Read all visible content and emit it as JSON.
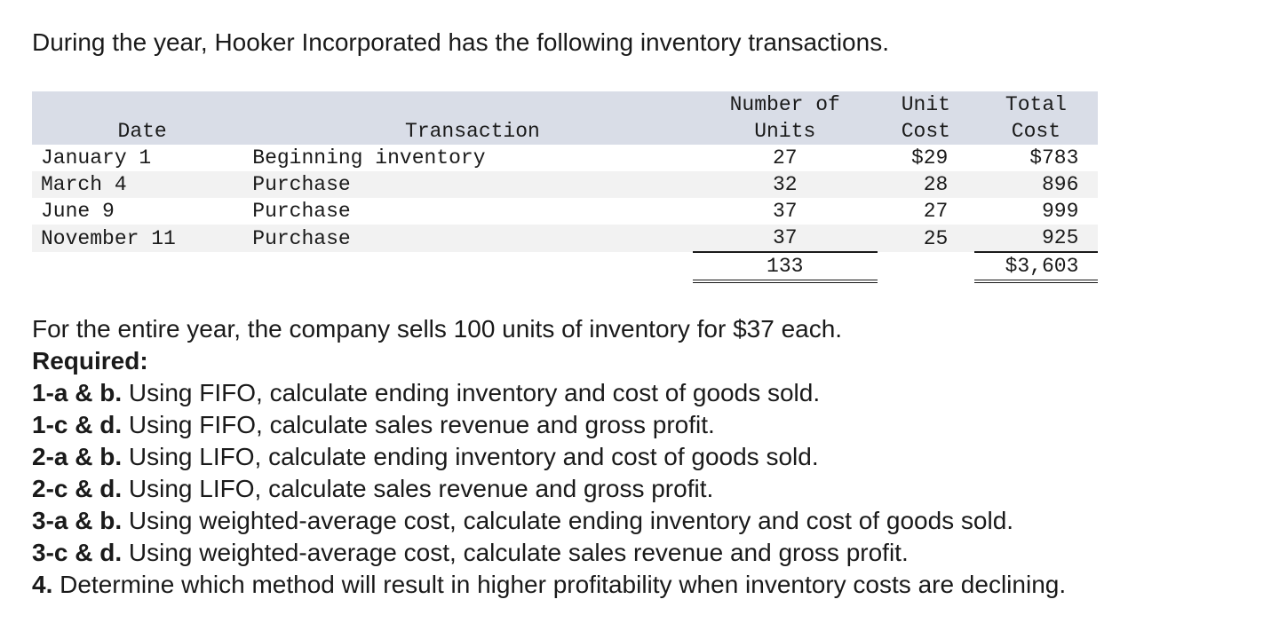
{
  "intro": "During the year, Hooker Incorporated has the following inventory transactions.",
  "table": {
    "headers": {
      "date": "Date",
      "transaction": "Transaction",
      "units_line1": "Number of",
      "units_line2": "Units",
      "unit_cost_line1": "Unit",
      "unit_cost_line2": "Cost",
      "total_cost_line1": "Total",
      "total_cost_line2": "Cost"
    },
    "rows": [
      {
        "date": "January 1",
        "transaction": "Beginning inventory",
        "units": "27",
        "unit_cost": "$29",
        "total_cost": "$783"
      },
      {
        "date": "March 4",
        "transaction": "Purchase",
        "units": "32",
        "unit_cost": "28",
        "total_cost": "896"
      },
      {
        "date": "June 9",
        "transaction": "Purchase",
        "units": "37",
        "unit_cost": "27",
        "total_cost": "999"
      },
      {
        "date": "November 11",
        "transaction": "Purchase",
        "units": "37",
        "unit_cost": "25",
        "total_cost": "925"
      }
    ],
    "totals": {
      "units": "133",
      "total_cost": "$3,603"
    }
  },
  "sales_line": "For the entire year, the company sells 100 units of inventory for $37 each.",
  "required_label": "Required:",
  "requirements": [
    {
      "label": "1-a & b.",
      "text": " Using FIFO, calculate ending inventory and cost of goods sold."
    },
    {
      "label": "1-c & d.",
      "text": " Using FIFO, calculate sales revenue and gross profit."
    },
    {
      "label": "2-a & b.",
      "text": " Using LIFO, calculate ending inventory and cost of goods sold."
    },
    {
      "label": "2-c & d.",
      "text": " Using LIFO, calculate sales revenue and gross profit."
    },
    {
      "label": "3-a & b.",
      "text": " Using weighted-average cost, calculate ending inventory and cost of goods sold."
    },
    {
      "label": "3-c & d.",
      "text": " Using weighted-average cost, calculate sales revenue and gross profit."
    },
    {
      "label": "4.",
      "text": " Determine which method will result in higher profitability when inventory costs are declining."
    }
  ]
}
